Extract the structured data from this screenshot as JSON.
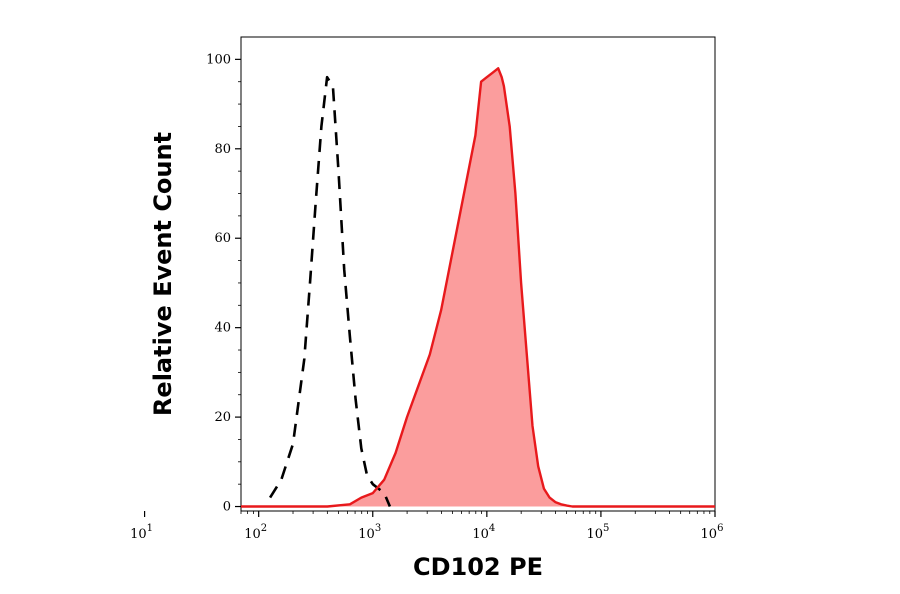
{
  "chart_data": {
    "type": "area",
    "xlabel": "CD102 PE",
    "ylabel": "Relative Event Count",
    "x_scale": "log",
    "xlim": [
      70,
      1000000
    ],
    "ylim": [
      -1,
      105
    ],
    "x_ticks": [
      {
        "base": "10",
        "exp": "1",
        "value": 10
      },
      {
        "base": "10",
        "exp": "2",
        "value": 100
      },
      {
        "base": "10",
        "exp": "3",
        "value": 1000
      },
      {
        "base": "10",
        "exp": "4",
        "value": 10000
      },
      {
        "base": "10",
        "exp": "5",
        "value": 100000
      },
      {
        "base": "10",
        "exp": "6",
        "value": 1000000
      }
    ],
    "y_ticks": [
      {
        "label": "0",
        "value": 0
      },
      {
        "label": "20",
        "value": 20
      },
      {
        "label": "40",
        "value": 40
      },
      {
        "label": "60",
        "value": 60
      },
      {
        "label": "80",
        "value": 80
      },
      {
        "label": "100",
        "value": 100
      }
    ],
    "grid": false,
    "series": [
      {
        "style": "dashed",
        "color": "#000000",
        "fill": "none",
        "x": [
          126,
          158,
          200,
          251,
          282,
          316,
          355,
          398,
          447,
          501,
          562,
          631,
          708,
          794,
          891,
          1000,
          1122,
          1259,
          1413
        ],
        "y": [
          2,
          6,
          14,
          33,
          50,
          68,
          85,
          96,
          94,
          75,
          53,
          38,
          24,
          13,
          7,
          5,
          4,
          3,
          0
        ]
      },
      {
        "style": "solid",
        "color": "#e8191c",
        "fill": "#fb9d9d",
        "x": [
          70,
          400,
          631,
          794,
          1000,
          1259,
          1585,
          1995,
          2512,
          3162,
          3981,
          5012,
          6310,
          7943,
          8913,
          10000,
          11220,
          12589,
          13500,
          14125,
          15849,
          17783,
          19953,
          22387,
          25119,
          28184,
          31623,
          35481,
          39811,
          44668,
          50119,
          56234,
          1000000
        ],
        "y": [
          0,
          0,
          0.5,
          2,
          3,
          6,
          12,
          20,
          27,
          34,
          44,
          57,
          70,
          83,
          95,
          96,
          97,
          98,
          96,
          94,
          85,
          70,
          50,
          34,
          18,
          9,
          4,
          2,
          1,
          0.5,
          0.2,
          0,
          0
        ]
      }
    ]
  }
}
